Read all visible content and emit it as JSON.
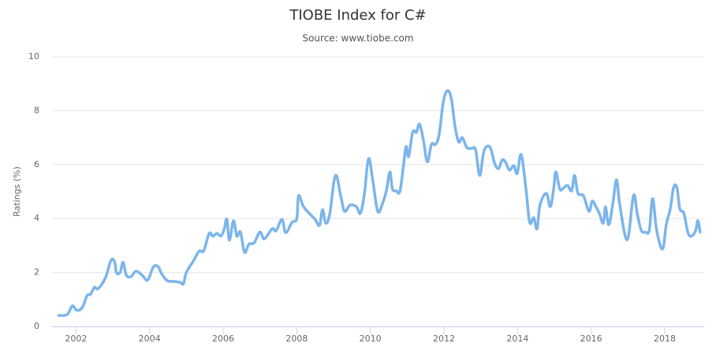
{
  "chart_data": {
    "type": "line",
    "title": "TIOBE Index for C#",
    "subtitle": "Source: www.tiobe.com",
    "y_label": "Ratings (%)",
    "x": [
      2001.53,
      2001.76,
      2001.9,
      2002.02,
      2002.17,
      2002.3,
      2002.4,
      2002.5,
      2002.6,
      2002.8,
      2002.95,
      2003.05,
      2003.1,
      2003.2,
      2003.28,
      2003.37,
      2003.5,
      2003.63,
      2003.8,
      2003.95,
      2004.1,
      2004.23,
      2004.33,
      2004.48,
      2004.65,
      2004.83,
      2004.92,
      2005.0,
      2005.2,
      2005.35,
      2005.47,
      2005.62,
      2005.72,
      2005.83,
      2005.94,
      2006.03,
      2006.1,
      2006.17,
      2006.28,
      2006.37,
      2006.47,
      2006.58,
      2006.7,
      2006.84,
      2007.0,
      2007.12,
      2007.33,
      2007.44,
      2007.6,
      2007.7,
      2007.87,
      2008.0,
      2008.05,
      2008.18,
      2008.37,
      2008.5,
      2008.62,
      2008.7,
      2008.79,
      2008.9,
      2009.05,
      2009.2,
      2009.3,
      2009.45,
      2009.62,
      2009.73,
      2009.84,
      2009.95,
      2010.07,
      2010.2,
      2010.33,
      2010.44,
      2010.53,
      2010.6,
      2010.7,
      2010.8,
      2010.89,
      2010.97,
      2011.04,
      2011.15,
      2011.25,
      2011.34,
      2011.45,
      2011.55,
      2011.66,
      2011.77,
      2011.87,
      2011.98,
      2012.09,
      2012.2,
      2012.3,
      2012.4,
      2012.5,
      2012.62,
      2012.75,
      2012.86,
      2012.97,
      2013.07,
      2013.16,
      2013.27,
      2013.37,
      2013.48,
      2013.58,
      2013.67,
      2013.78,
      2013.9,
      2013.99,
      2014.1,
      2014.23,
      2014.33,
      2014.44,
      2014.53,
      2014.61,
      2014.78,
      2014.89,
      2014.98,
      2015.04,
      2015.15,
      2015.26,
      2015.36,
      2015.47,
      2015.55,
      2015.64,
      2015.79,
      2015.94,
      2016.03,
      2016.13,
      2016.22,
      2016.33,
      2016.39,
      2016.48,
      2016.59,
      2016.69,
      2016.78,
      2016.98,
      2017.15,
      2017.25,
      2017.36,
      2017.47,
      2017.58,
      2017.67,
      2017.78,
      2017.94,
      2018.04,
      2018.15,
      2018.24,
      2018.33,
      2018.41,
      2018.52,
      2018.63,
      2018.73,
      2018.84,
      2018.9,
      2018.96
    ],
    "series": [
      {
        "color": "#7cb5ec",
        "values": [
          0.41,
          0.44,
          0.76,
          0.6,
          0.7,
          1.14,
          1.2,
          1.45,
          1.4,
          1.8,
          2.45,
          2.4,
          2.0,
          2.0,
          2.38,
          1.9,
          1.85,
          2.05,
          1.9,
          1.72,
          2.2,
          2.22,
          1.95,
          1.7,
          1.67,
          1.64,
          1.58,
          2.0,
          2.45,
          2.8,
          2.8,
          3.45,
          3.35,
          3.45,
          3.35,
          3.62,
          3.98,
          3.2,
          3.92,
          3.35,
          3.5,
          2.75,
          3.05,
          3.1,
          3.5,
          3.25,
          3.62,
          3.55,
          3.97,
          3.48,
          3.86,
          4.0,
          4.85,
          4.45,
          4.15,
          3.97,
          3.75,
          4.33,
          3.83,
          4.2,
          5.6,
          4.8,
          4.27,
          4.5,
          4.44,
          4.2,
          4.93,
          6.22,
          5.38,
          4.27,
          4.56,
          5.06,
          5.73,
          5.1,
          5.03,
          5.0,
          5.85,
          6.67,
          6.3,
          7.2,
          7.2,
          7.5,
          6.84,
          6.1,
          6.75,
          6.75,
          7.13,
          8.3,
          8.74,
          8.45,
          7.43,
          6.84,
          7.0,
          6.64,
          6.6,
          6.55,
          5.6,
          6.4,
          6.67,
          6.6,
          6.08,
          5.85,
          6.17,
          6.1,
          5.8,
          5.96,
          5.67,
          6.37,
          5.08,
          3.86,
          4.03,
          3.62,
          4.5,
          4.94,
          4.44,
          5.09,
          5.73,
          5.09,
          5.15,
          5.23,
          5.03,
          5.6,
          4.94,
          4.85,
          4.27,
          4.65,
          4.44,
          4.2,
          3.83,
          4.44,
          3.77,
          4.56,
          5.44,
          4.5,
          3.22,
          4.85,
          4.2,
          3.57,
          3.5,
          3.57,
          4.74,
          3.57,
          2.87,
          3.77,
          4.36,
          5.15,
          5.15,
          4.36,
          4.2,
          3.48,
          3.35,
          3.56,
          3.92,
          3.5
        ]
      }
    ],
    "xlim": [
      2001.35,
      2019.05
    ],
    "xticks": [
      2002,
      2004,
      2006,
      2008,
      2010,
      2012,
      2014,
      2016,
      2018
    ],
    "ylim": [
      0,
      10
    ],
    "yticks": [
      0,
      2,
      4,
      6,
      8,
      10
    ],
    "grid": true
  }
}
